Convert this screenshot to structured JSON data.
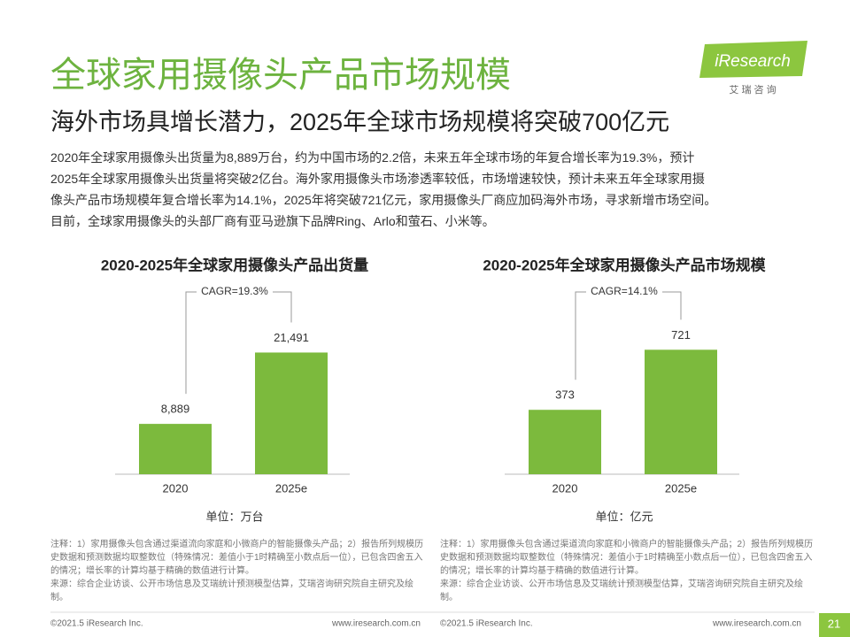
{
  "header": {
    "title": "全球家用摄像头产品市场规模",
    "subtitle": "海外市场具增长潜力，2025年全球市场规模将突破700亿元"
  },
  "logo": {
    "name": "iResearch",
    "tagline": "艾 瑞 咨 询"
  },
  "body": {
    "lines": [
      "2020年全球家用摄像头出货量为8,889万台，约为中国市场的2.2倍，未来五年全球市场的年复合增长率为19.3%，预计",
      "2025年全球家用摄像头出货量将突破2亿台。海外家用摄像头市场渗透率较低，市场增速较快，预计未来五年全球家用摄",
      "像头产品市场规模年复合增长率为14.1%，2025年将突破721亿元，家用摄像头厂商应加码海外市场，寻求新增市场空间。",
      "目前，全球家用摄像头的头部厂商有亚马逊旗下品牌Ring、Arlo和萤石、小米等。"
    ]
  },
  "chart_data": [
    {
      "type": "bar",
      "title": "2020-2025年全球家用摄像头产品出货量",
      "categories": [
        "2020",
        "2025e"
      ],
      "values": [
        8889,
        21491
      ],
      "value_labels": [
        "8,889",
        "21,491"
      ],
      "color": "#7cba3d",
      "ylim": [
        0,
        25000
      ],
      "annotation": "CAGR=19.3%",
      "unit": "单位：万台"
    },
    {
      "type": "bar",
      "title": "2020-2025年全球家用摄像头产品市场规模",
      "categories": [
        "2020",
        "2025e"
      ],
      "values": [
        373,
        721
      ],
      "color": "#7cba3d",
      "ylim": [
        0,
        820
      ],
      "annotation": "CAGR=14.1%",
      "unit": "单位：亿元"
    }
  ],
  "notes": [
    {
      "note": "注释：1）家用摄像头包含通过渠道流向家庭和小微商户的智能摄像头产品；2）报告所列规模历史数据和预测数据均取整数位（特殊情况：差值小于1时精确至小数点后一位），已包含四舍五入的情况；增长率的计算均基于精确的数值进行计算。",
      "source": "来源：综合企业访谈、公开市场信息及艾瑞统计预测模型估算，艾瑞咨询研究院自主研究及绘制。"
    },
    {
      "note": "注释：1）家用摄像头包含通过渠道流向家庭和小微商户的智能摄像头产品；2）报告所列规模历史数据和预测数据均取整数位（特殊情况：差值小于1时精确至小数点后一位），已包含四舍五入的情况；增长率的计算均基于精确的数值进行计算。",
      "source": "来源：综合企业访谈、公开市场信息及艾瑞统计预测模型估算，艾瑞咨询研究院自主研究及绘制。"
    }
  ],
  "footer": {
    "left": [
      "©2021.5 iResearch Inc.",
      "©2021.5 iResearch Inc."
    ],
    "right": [
      "www.iresearch.com.cn",
      "www.iresearch.com.cn"
    ],
    "page": "21"
  }
}
